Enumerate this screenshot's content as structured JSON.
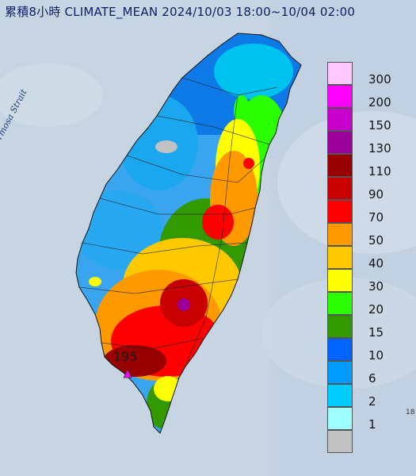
{
  "header": {
    "title": "累積8小時 CLIMATE_MEAN 2024/10/03 18:00~10/04 02:00"
  },
  "map": {
    "strait_label": "Formosa Strait",
    "max_station_value": "195",
    "edge_text": "18"
  },
  "legend": {
    "entries": [
      {
        "label": "300",
        "color": "#ffc6fe"
      },
      {
        "label": "200",
        "color": "#fe00fe"
      },
      {
        "label": "150",
        "color": "#c900cc"
      },
      {
        "label": "130",
        "color": "#9b009b"
      },
      {
        "label": "110",
        "color": "#980100"
      },
      {
        "label": "90",
        "color": "#c80001"
      },
      {
        "label": "70",
        "color": "#fe0000"
      },
      {
        "label": "50",
        "color": "#fe9a00"
      },
      {
        "label": "40",
        "color": "#ffc900"
      },
      {
        "label": "30",
        "color": "#ffff00"
      },
      {
        "label": "20",
        "color": "#2bfe00"
      },
      {
        "label": "15",
        "color": "#339900"
      },
      {
        "label": "10",
        "color": "#0065fe"
      },
      {
        "label": "6",
        "color": "#019afe"
      },
      {
        "label": "2",
        "color": "#00cbfe"
      },
      {
        "label": "1",
        "color": "#9efefe"
      },
      {
        "label": "",
        "color": "#c1c1c1"
      }
    ]
  }
}
